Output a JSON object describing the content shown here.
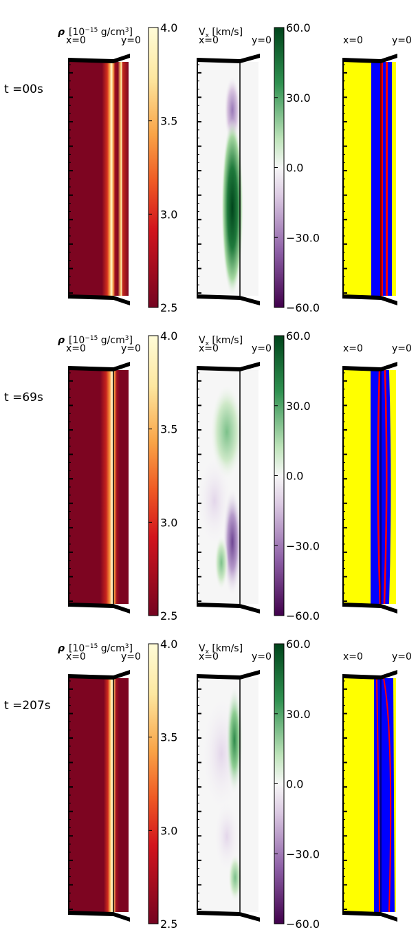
{
  "rows": [
    {
      "time_label": "t =00s",
      "density": {
        "ticks": [
          "4.0",
          "3.5",
          "3.0",
          "2.5"
        ]
      },
      "vx": {
        "ticks": [
          "60.0",
          "30.0",
          "0.0",
          "−30.0",
          "−60.0"
        ]
      }
    },
    {
      "time_label": "t =69s",
      "density": {
        "ticks": [
          "4.0",
          "3.5",
          "3.0",
          "2.5"
        ]
      },
      "vx": {
        "ticks": [
          "60.0",
          "30.0",
          "0.0",
          "−30.0",
          "−60.0"
        ]
      }
    },
    {
      "time_label": "t =207s",
      "density": {
        "ticks": [
          "4.0",
          "3.5",
          "3.0",
          "2.5"
        ]
      },
      "vx": {
        "ticks": [
          "60.0",
          "30.0",
          "0.0",
          "−30.0",
          "−60.0"
        ]
      }
    }
  ],
  "labels": {
    "density_title_symbol": "ρ",
    "density_title_unit": "[10",
    "density_title_exp": "−15",
    "density_title_rest": " g/cm",
    "density_title_cube": "3",
    "density_title_close": "]",
    "vx_title_v": "V",
    "vx_title_sub": "x",
    "vx_title_unit": " [km/s]",
    "x0": "x=0",
    "y0": "y=0"
  },
  "colors": {
    "density_high": "#fffbd2",
    "density_mid": "#f58b2c",
    "density_low": "#7d0521",
    "vx_pos": "#00441b",
    "vx_zero": "#f7f7f7",
    "vx_neg": "#40004b",
    "mask_outside": "#ffff00",
    "mask_inside": "#0000ff",
    "mask_boundary": "#ff0000"
  }
}
